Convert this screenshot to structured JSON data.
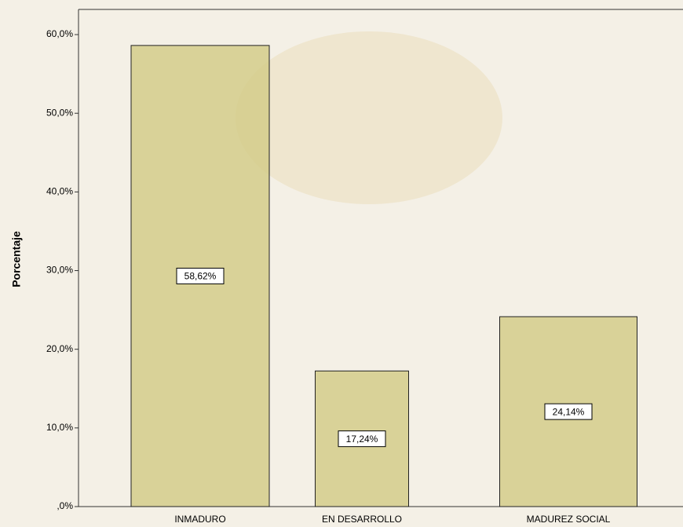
{
  "chart_data": {
    "type": "bar",
    "y_label": "Porcentaje",
    "categories": [
      "INMADURO",
      "EN DESARROLLO",
      "MADUREZ SOCIAL"
    ],
    "values": [
      58.62,
      17.24,
      24.14
    ],
    "value_labels": [
      "58,62%",
      "17,24%",
      "24,14%"
    ],
    "color": "#d2cb84",
    "ylim": [
      0,
      63.2
    ],
    "yticks": [
      {
        "value": 0,
        "label": ",0%"
      },
      {
        "value": 10,
        "label": "10,0%"
      },
      {
        "value": 20,
        "label": "20,0%"
      },
      {
        "value": 30,
        "label": "30,0%"
      },
      {
        "value": 40,
        "label": "40,0%"
      },
      {
        "value": 50,
        "label": "50,0%"
      },
      {
        "value": 60,
        "label": "60,0%"
      }
    ]
  }
}
